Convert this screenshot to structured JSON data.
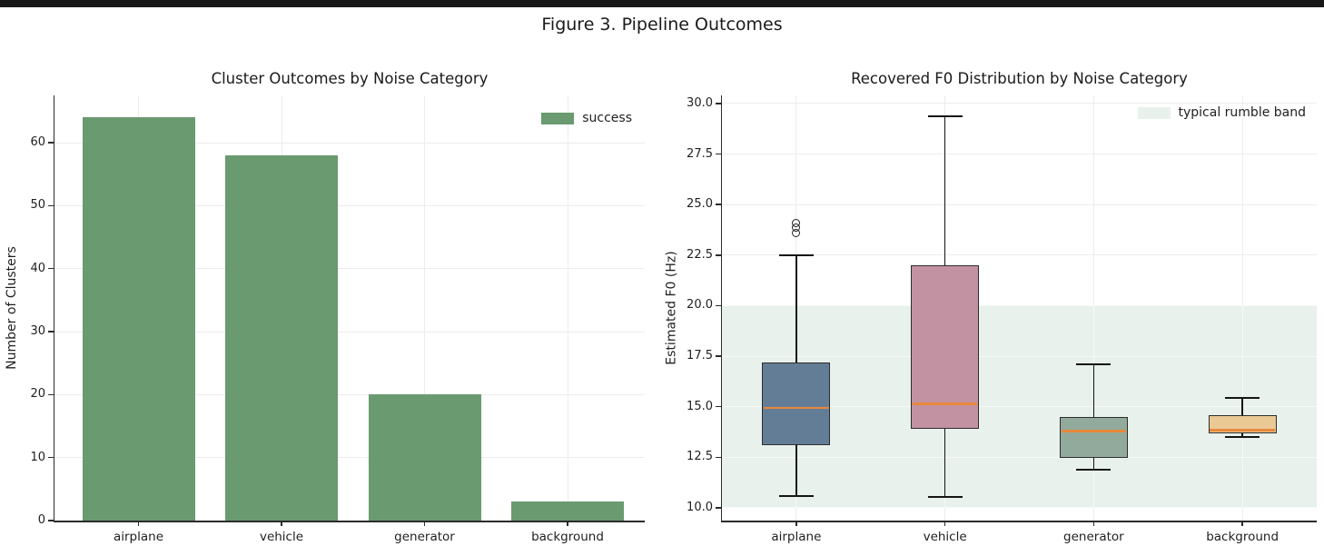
{
  "window": {
    "top_bar_color": "#181818",
    "background": "#ffffff"
  },
  "figure_title": "Figure 3. Pipeline Outcomes",
  "chart_data": [
    {
      "type": "bar",
      "title": "Cluster Outcomes by Noise Category",
      "xlabel": "",
      "ylabel": "Number of Clusters",
      "categories": [
        "airplane",
        "vehicle",
        "generator",
        "background"
      ],
      "values": [
        64,
        58,
        20,
        3
      ],
      "yticks": [
        {
          "v": 0,
          "label": "0"
        },
        {
          "v": 10,
          "label": "10"
        },
        {
          "v": 20,
          "label": "20"
        },
        {
          "v": 30,
          "label": "30"
        },
        {
          "v": 40,
          "label": "40"
        },
        {
          "v": 50,
          "label": "50"
        },
        {
          "v": 60,
          "label": "60"
        }
      ],
      "ylim": [
        0,
        67.5
      ],
      "grid": true,
      "bar_color": "#6a9a70",
      "legend": {
        "label": "success",
        "position": "upper right"
      }
    },
    {
      "type": "boxplot",
      "title": "Recovered F0 Distribution by Noise Category",
      "xlabel": "",
      "ylabel": "Estimated F0 (Hz)",
      "categories": [
        "airplane",
        "vehicle",
        "generator",
        "background"
      ],
      "yticks": [
        {
          "v": 10.0,
          "label": "10.0"
        },
        {
          "v": 12.5,
          "label": "12.5"
        },
        {
          "v": 15.0,
          "label": "15.0"
        },
        {
          "v": 17.5,
          "label": "17.5"
        },
        {
          "v": 20.0,
          "label": "20.0"
        },
        {
          "v": 22.5,
          "label": "22.5"
        },
        {
          "v": 25.0,
          "label": "25.0"
        },
        {
          "v": 27.5,
          "label": "27.5"
        },
        {
          "v": 30.0,
          "label": "30.0"
        }
      ],
      "ylim": [
        9.37,
        30.4
      ],
      "grid": true,
      "median_color": "#e8883a",
      "band": {
        "label": "typical rumble band",
        "from": 10.0,
        "to": 20.0,
        "color": "#e8f1ec",
        "legend_position": "upper right"
      },
      "boxes": [
        {
          "category": "airplane",
          "whisker_low": 10.6,
          "q1": 13.1,
          "median": 14.95,
          "q3": 17.2,
          "whisker_high": 22.5,
          "outliers": [
            23.6,
            23.85,
            24.1
          ],
          "color": "#647d96"
        },
        {
          "category": "vehicle",
          "whisker_low": 10.55,
          "q1": 13.9,
          "median": 15.15,
          "q3": 22.0,
          "whisker_high": 29.35,
          "outliers": [],
          "color": "#c292a3"
        },
        {
          "category": "generator",
          "whisker_low": 11.9,
          "q1": 12.45,
          "median": 13.8,
          "q3": 14.5,
          "whisker_high": 17.1,
          "outliers": [],
          "color": "#92aa9c"
        },
        {
          "category": "background",
          "whisker_low": 13.5,
          "q1": 13.7,
          "median": 13.85,
          "q3": 14.6,
          "whisker_high": 15.45,
          "outliers": [],
          "color": "#ebc995"
        }
      ]
    }
  ]
}
